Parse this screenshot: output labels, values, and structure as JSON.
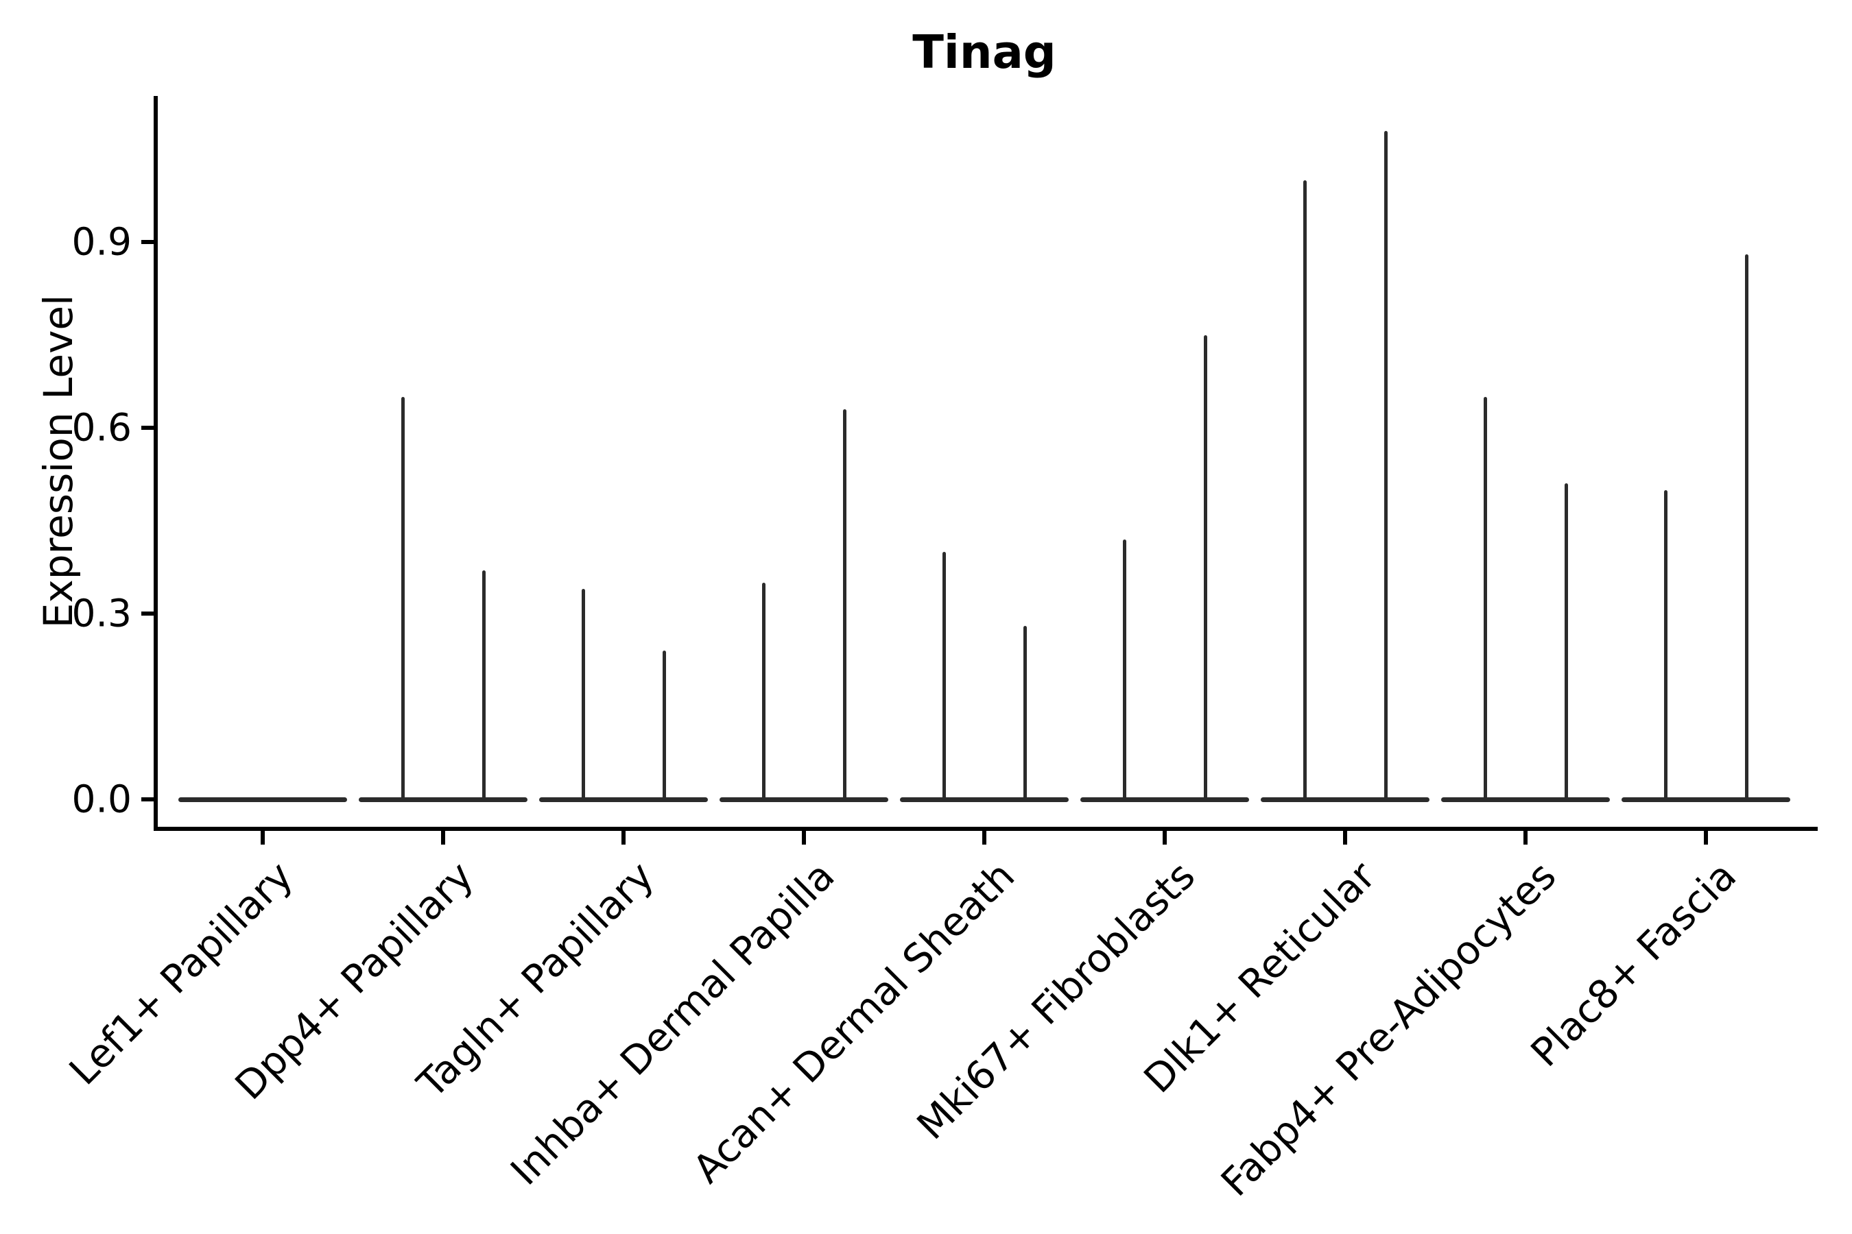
{
  "chart_data": {
    "type": "violin",
    "title": "Tinag",
    "ylabel": "Expression Level",
    "xlabel": "",
    "categories": [
      "Lef1+ Papillary",
      "Dpp4+ Papillary",
      "Tagln+ Papillary",
      "Inhba+ Dermal Papilla",
      "Acan+ Dermal Sheath",
      "Mki67+ Fibroblasts",
      "Dlk1+ Reticular",
      "Fabp4+ Pre-Adipocytes",
      "Plac8+ Fascia"
    ],
    "series": [
      {
        "name": "left-violin-max-expression",
        "values": [
          0,
          0.65,
          0.34,
          0.35,
          0.4,
          0.42,
          1.0,
          0.65,
          0.5
        ]
      },
      {
        "name": "right-violin-max-expression",
        "values": [
          0,
          0.37,
          0.24,
          0.63,
          0.28,
          0.75,
          1.08,
          0.51,
          0.88
        ]
      }
    ],
    "y_ticks": [
      {
        "v": 0.0,
        "label": "0.0"
      },
      {
        "v": 0.3,
        "label": "0.3"
      },
      {
        "v": 0.6,
        "label": "0.6"
      },
      {
        "v": 0.9,
        "label": "0.9"
      }
    ],
    "ylim": [
      -0.05,
      1.14
    ],
    "grid": false,
    "legend": "none",
    "violin_style": "mass-at-zero baseline bar with thin needle spike to max value; two violins per category",
    "ink_color": "#2b2b2b",
    "axis_color": "#000000",
    "background": "#ffffff"
  }
}
